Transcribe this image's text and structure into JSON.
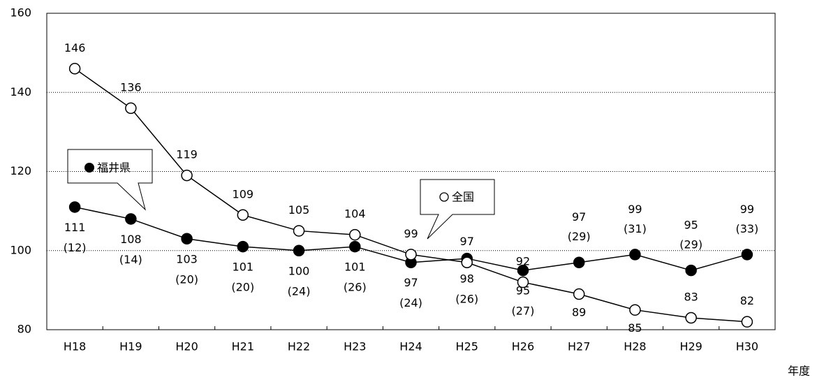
{
  "chart_data": {
    "type": "line",
    "x_label": "年度",
    "categories": [
      "H18",
      "H19",
      "H20",
      "H21",
      "H22",
      "H23",
      "H24",
      "H25",
      "H26",
      "H27",
      "H28",
      "H29",
      "H30"
    ],
    "series": [
      {
        "name": "福井県",
        "color": "#000000",
        "marker": "filled",
        "values": [
          111,
          108,
          103,
          101,
          100,
          101,
          97,
          98,
          95,
          97,
          99,
          95,
          99
        ],
        "rank_labels": [
          "(12)",
          "(14)",
          "(20)",
          "(20)",
          "(24)",
          "(26)",
          "(24)",
          "(26)",
          "(27)",
          "(29)",
          "(31)",
          "(29)",
          "(33)"
        ]
      },
      {
        "name": "全国",
        "color": "#000000",
        "marker": "open",
        "values": [
          146,
          136,
          119,
          109,
          105,
          104,
          99,
          97,
          92,
          89,
          85,
          83,
          82
        ]
      }
    ],
    "ylim": [
      80,
      160
    ],
    "yticks": [
      80,
      100,
      120,
      140,
      160
    ],
    "grid": true
  }
}
